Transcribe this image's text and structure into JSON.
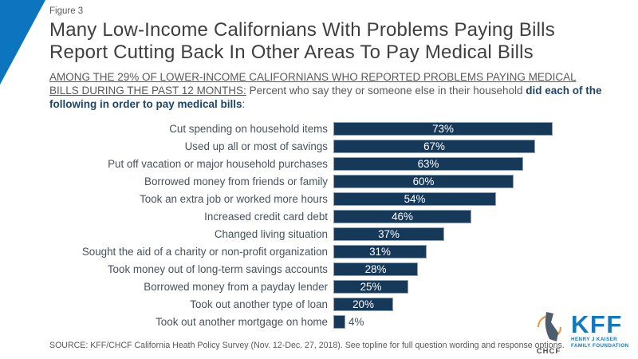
{
  "figure_label": "Figure 3",
  "title_line1": "Many Low-Income Californians With Problems Paying Bills",
  "title_line2": "Report Cutting Back In Other Areas To Pay Medical Bills",
  "subtitle": {
    "underlined_caps": "AMONG THE 29% OF LOWER-INCOME CALIFORNIANS WHO REPORTED PROBLEMS PAYING MEDICAL BILLS DURING THE PAST 12 MONTHS:",
    "regular": " Percent who say they or someone else in their household ",
    "bold": "did each of the following in order to pay medical bills",
    "suffix": ":"
  },
  "chart_data": {
    "type": "bar",
    "orientation": "horizontal",
    "title": "Many Low-Income Californians With Problems Paying Bills Report Cutting Back In Other Areas To Pay Medical Bills",
    "xlabel": "",
    "ylabel": "",
    "xlim": [
      0,
      100
    ],
    "value_suffix": "%",
    "bar_color": "#16395a",
    "bar_border_color": "#96a0aa",
    "categories": [
      "Cut spending on household items",
      "Used up all or most of savings",
      "Put off vacation or major household purchases",
      "Borrowed money from friends or family",
      "Took an extra job or worked more hours",
      "Increased credit card debt",
      "Changed living situation",
      "Sought the aid of a charity or non-profit organization",
      "Took money out of long-term savings accounts",
      "Borrowed money from a payday lender",
      "Took out another type of loan",
      "Took out another mortgage on home"
    ],
    "values": [
      73,
      67,
      63,
      60,
      54,
      46,
      37,
      31,
      28,
      25,
      20,
      4
    ]
  },
  "source": "SOURCE: KFF/CHCF California Heath Policy Survey (Nov. 12-Dec. 27, 2018). See topline for full question wording and response options.",
  "logos": {
    "chcf": "CHCF",
    "kff": "KFF",
    "kff_sub_line1": "HENRY J KAISER",
    "kff_sub_line2": "FAMILY FOUNDATION"
  },
  "colors": {
    "corner_triangle": "#0d75c0",
    "title_text": "#3f3f3f",
    "subtitle_text": "#595959",
    "subtitle_bold": "#1f4666",
    "bar_fill": "#16395a",
    "bar_value_inside": "#ffffff",
    "kff_blue": "#1478bf",
    "chcf_slate": "#4d5d6c",
    "chcf_orange": "#ea9a44"
  }
}
